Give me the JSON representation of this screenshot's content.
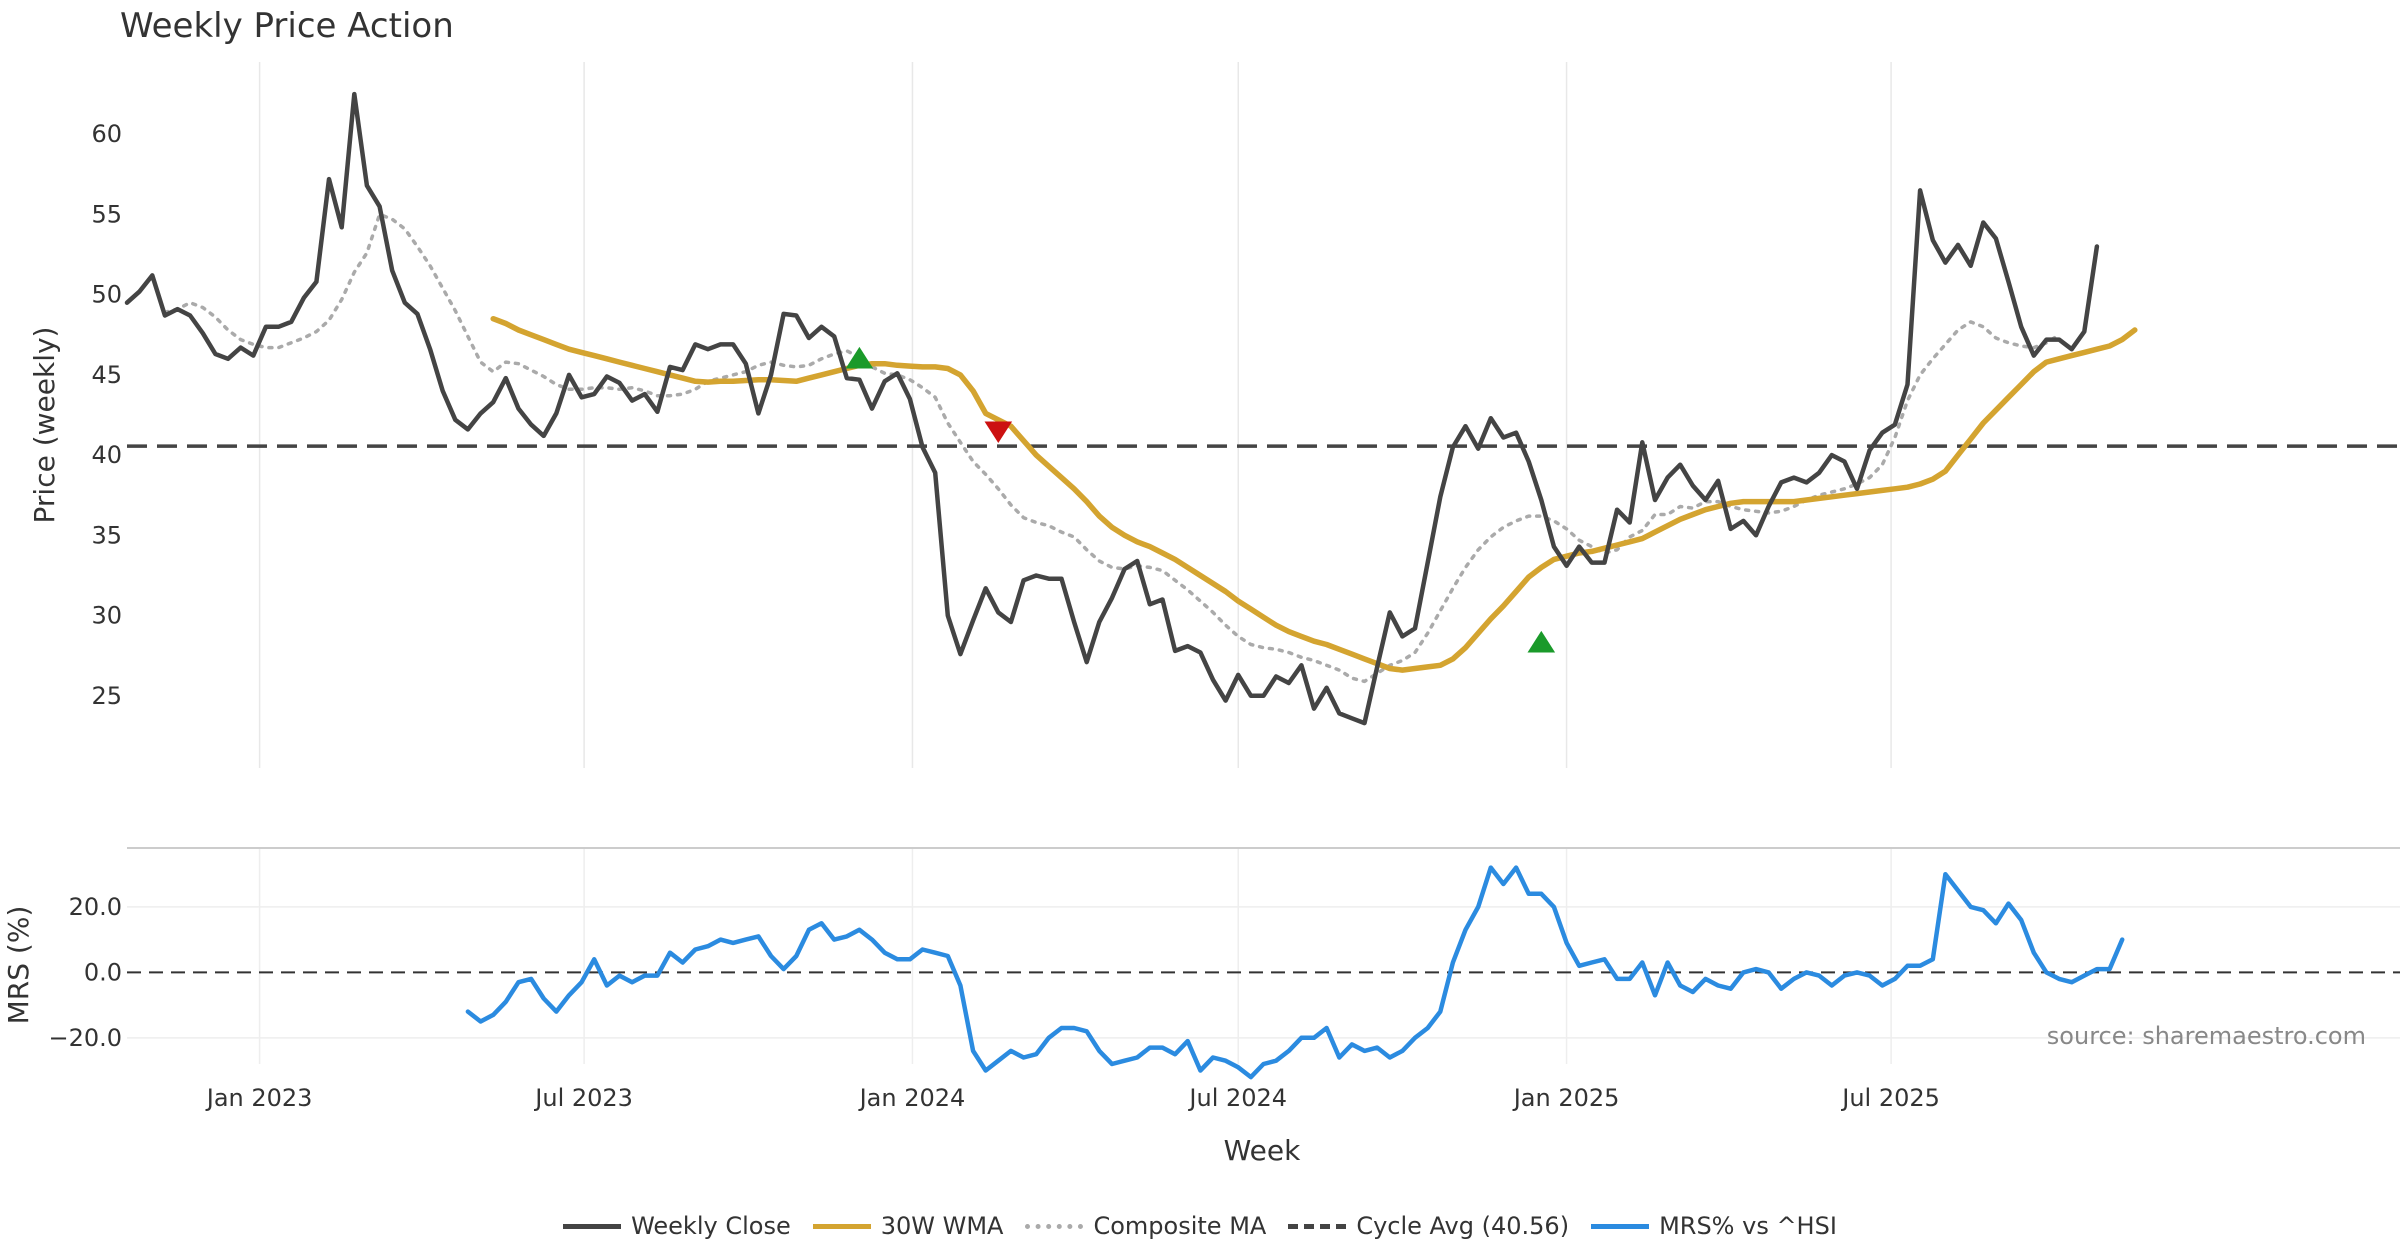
{
  "chart_data": [
    {
      "type": "line",
      "title": "Weekly Price Action",
      "ylabel": "Price (weekly)",
      "xlabel": "Week",
      "ylim": [
        20.5,
        64.5
      ],
      "yticks": [
        25,
        30,
        35,
        40,
        45,
        50,
        55,
        60
      ],
      "xticks": [
        "Jan 2023",
        "Jul 2023",
        "Jan 2024",
        "Jul 2024",
        "Jan 2025",
        "Jul 2025"
      ],
      "x_range_weeks": [
        0,
        180
      ],
      "xtick_weeks": [
        10.5,
        36.2,
        62.2,
        88.0,
        114.0,
        139.7
      ],
      "cycle_avg": 40.56,
      "series": [
        {
          "name": "Weekly Close",
          "color": "#444444",
          "start_week": 0,
          "values": [
            49.5,
            50.2,
            51.2,
            48.7,
            49.1,
            48.7,
            47.6,
            46.3,
            46.0,
            46.7,
            46.2,
            48.0,
            48.0,
            48.3,
            49.8,
            50.8,
            57.2,
            54.2,
            62.5,
            56.8,
            55.5,
            51.5,
            49.5,
            48.8,
            46.6,
            44.0,
            42.2,
            41.6,
            42.6,
            43.3,
            44.8,
            42.9,
            41.9,
            41.2,
            42.6,
            45.0,
            43.6,
            43.8,
            44.9,
            44.5,
            43.4,
            43.8,
            42.7,
            45.5,
            45.3,
            46.9,
            46.6,
            46.9,
            46.9,
            45.7,
            42.6,
            45.0,
            48.8,
            48.7,
            47.3,
            48.0,
            47.4,
            44.8,
            44.7,
            42.9,
            44.6,
            45.1,
            43.5,
            40.5,
            38.9,
            30.0,
            27.6,
            29.7,
            31.7,
            30.2,
            29.6,
            32.2,
            32.5,
            32.3,
            32.3,
            29.6,
            27.1,
            29.6,
            31.1,
            32.9,
            33.4,
            30.7,
            31.0,
            27.8,
            28.1,
            27.7,
            26.0,
            24.7,
            26.3,
            25.0,
            25.0,
            26.2,
            25.8,
            26.9,
            24.2,
            25.5,
            23.9,
            23.6,
            23.3,
            26.8,
            30.2,
            28.7,
            29.2,
            33.3,
            37.4,
            40.5,
            41.8,
            40.4,
            42.3,
            41.1,
            41.4,
            39.6,
            37.2,
            34.3,
            33.1,
            34.3,
            33.3,
            33.3,
            36.6,
            35.8,
            40.8,
            37.2,
            38.6,
            39.4,
            38.1,
            37.2,
            38.4,
            35.4,
            35.9,
            35.0,
            36.8,
            38.3,
            38.6,
            38.3,
            38.9,
            40.0,
            39.6,
            37.9,
            40.3,
            41.4,
            41.9,
            44.4,
            56.5,
            53.4,
            52.0,
            53.1,
            51.8,
            54.5,
            53.5,
            50.8,
            48.0,
            46.2,
            47.2,
            47.2,
            46.6,
            47.7,
            53.0
          ]
        },
        {
          "name": "30W WMA",
          "color": "#d4a430",
          "start_week": 29,
          "values": [
            48.5,
            48.2,
            47.8,
            47.5,
            47.2,
            46.9,
            46.6,
            46.4,
            46.2,
            46.0,
            45.8,
            45.6,
            45.4,
            45.2,
            45.0,
            44.8,
            44.6,
            44.55,
            44.6,
            44.6,
            44.65,
            44.7,
            44.7,
            44.65,
            44.6,
            44.8,
            45.0,
            45.2,
            45.4,
            45.6,
            45.7,
            45.7,
            45.6,
            45.55,
            45.5,
            45.5,
            45.4,
            45.0,
            44.0,
            42.6,
            42.2,
            41.8,
            40.9,
            40.0,
            39.3,
            38.6,
            37.9,
            37.1,
            36.2,
            35.5,
            35.0,
            34.6,
            34.3,
            33.9,
            33.5,
            33.0,
            32.5,
            32.0,
            31.5,
            30.9,
            30.4,
            29.9,
            29.4,
            29.0,
            28.7,
            28.4,
            28.2,
            27.9,
            27.6,
            27.3,
            27.0,
            26.7,
            26.6,
            26.7,
            26.8,
            26.9,
            27.3,
            28.0,
            28.9,
            29.8,
            30.6,
            31.5,
            32.4,
            33.0,
            33.5,
            33.7,
            33.9,
            34.0,
            34.2,
            34.4,
            34.6,
            34.8,
            35.2,
            35.6,
            36.0,
            36.3,
            36.6,
            36.8,
            37.0,
            37.1,
            37.1,
            37.1,
            37.1,
            37.1,
            37.2,
            37.3,
            37.4,
            37.5,
            37.6,
            37.7,
            37.8,
            37.9,
            38.0,
            38.2,
            38.5,
            39.0,
            40.0,
            41.0,
            42.0,
            42.8,
            43.6,
            44.4,
            45.2,
            45.8,
            46.0,
            46.2,
            46.4,
            46.6,
            46.8,
            47.2,
            47.8
          ]
        },
        {
          "name": "Composite MA",
          "color": "#aaaaaa",
          "start_week": 3,
          "values": [
            48.9,
            49.1,
            49.5,
            49.2,
            48.6,
            47.8,
            47.2,
            46.9,
            46.7,
            46.7,
            47.0,
            47.3,
            47.7,
            48.4,
            49.7,
            51.4,
            52.6,
            55.0,
            54.7,
            54.1,
            53.0,
            51.8,
            50.4,
            49.0,
            47.4,
            45.8,
            45.2,
            45.8,
            45.7,
            45.3,
            44.9,
            44.4,
            44.1,
            44.1,
            44.2,
            44.2,
            44.1,
            44.2,
            44.0,
            43.7,
            43.7,
            43.8,
            44.1,
            44.6,
            44.8,
            45.0,
            45.2,
            45.6,
            45.8,
            45.6,
            45.5,
            45.6,
            46.0,
            46.3,
            46.5,
            46.1,
            45.5,
            45.1,
            45.0,
            44.7,
            44.2,
            43.6,
            42.0,
            40.8,
            39.6,
            38.8,
            37.9,
            36.9,
            36.1,
            35.8,
            35.6,
            35.2,
            34.9,
            34.1,
            33.4,
            33.0,
            32.9,
            33.1,
            33.0,
            32.8,
            32.2,
            31.6,
            30.9,
            30.2,
            29.4,
            28.7,
            28.2,
            28.0,
            27.9,
            27.7,
            27.4,
            27.2,
            26.9,
            26.6,
            26.1,
            25.9,
            26.4,
            26.9,
            27.2,
            27.7,
            28.9,
            30.3,
            31.7,
            33.0,
            34.1,
            34.9,
            35.5,
            35.9,
            36.2,
            36.2,
            35.9,
            35.4,
            34.7,
            34.3,
            33.9,
            34.1,
            34.9,
            35.3,
            36.3,
            36.3,
            36.8,
            36.7,
            37.1,
            37.1,
            36.8,
            36.6,
            36.5,
            36.4,
            36.5,
            36.8,
            37.2,
            37.5,
            37.7,
            37.9,
            38.2,
            38.6,
            39.4,
            41.1,
            43.4,
            45.0,
            46.0,
            46.9,
            47.8,
            48.3,
            48.0,
            47.3,
            47.0,
            46.8,
            46.7,
            47.0,
            47.5
          ]
        }
      ],
      "markers": [
        {
          "type": "buy",
          "week": 58,
          "value": 46.0
        },
        {
          "type": "sell",
          "week": 69,
          "value": 41.5
        },
        {
          "type": "buy",
          "week": 112,
          "value": 28.3
        }
      ]
    },
    {
      "type": "line",
      "ylabel": "MRS (%)",
      "ylim": [
        -28,
        38
      ],
      "yticks": [
        "20.0",
        "0.0",
        "−20.0"
      ],
      "ytick_values": [
        20,
        0,
        -20
      ],
      "series": [
        {
          "name": "MRS% vs ^HSI",
          "color": "#2b8be0",
          "start_week": 27,
          "values": [
            -12,
            -15,
            -13,
            -9,
            -3,
            -2,
            -8,
            -12,
            -7,
            -3,
            4,
            -4,
            -1,
            -3,
            -1,
            -1,
            6,
            3,
            7,
            8,
            10,
            9,
            10,
            11,
            5,
            1,
            5,
            13,
            15,
            10,
            11,
            13,
            10,
            6,
            4,
            4,
            7,
            6,
            5,
            -4,
            -24,
            -30,
            -27,
            -24,
            -26,
            -25,
            -20,
            -17,
            -17,
            -18,
            -24,
            -28,
            -27,
            -26,
            -23,
            -23,
            -25,
            -21,
            -30,
            -26,
            -27,
            -29,
            -32,
            -28,
            -27,
            -24,
            -20,
            -20,
            -17,
            -26,
            -22,
            -24,
            -23,
            -26,
            -24,
            -20,
            -17,
            -12,
            3,
            13,
            20,
            32,
            27,
            32,
            24,
            24,
            20,
            9,
            2,
            3,
            4,
            -2,
            -2,
            3,
            -7,
            3,
            -4,
            -6,
            -2,
            -4,
            -5,
            0,
            1,
            0,
            -5,
            -2,
            0,
            -1,
            -4,
            -1,
            0,
            -1,
            -4,
            -2,
            2,
            2,
            4,
            30,
            25,
            20,
            19,
            15,
            21,
            16,
            6,
            0,
            -2,
            -3,
            -1,
            1,
            1,
            10
          ]
        }
      ],
      "annotation": "source: sharemaestro.com"
    }
  ],
  "legend": [
    {
      "label": "Weekly Close",
      "color": "#444444",
      "style": "solid"
    },
    {
      "label": "30W WMA",
      "color": "#d4a430",
      "style": "solid"
    },
    {
      "label": "Composite MA",
      "color": "#aaaaaa",
      "style": "dotted"
    },
    {
      "label": "Cycle Avg (40.56)",
      "color": "#444444",
      "style": "dashed"
    },
    {
      "label": "MRS% vs ^HSI",
      "color": "#2b8be0",
      "style": "solid"
    }
  ]
}
